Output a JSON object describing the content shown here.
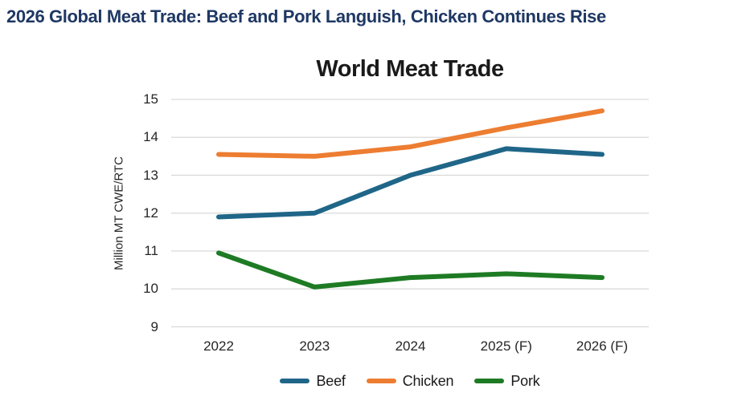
{
  "page": {
    "headline": "2026 Global Meat Trade: Beef and Pork Languish, Chicken Continues Rise",
    "headline_color": "#1f3864"
  },
  "chart_data": {
    "type": "line",
    "title": "World Meat Trade",
    "xlabel": "",
    "ylabel": "Million MT CWE/RTC",
    "categories": [
      "2022",
      "2023",
      "2024",
      "2025 (F)",
      "2026 (F)"
    ],
    "series": [
      {
        "name": "Beef",
        "color": "#1f6688",
        "values": [
          11.9,
          12.0,
          13.0,
          13.7,
          13.55
        ]
      },
      {
        "name": "Chicken",
        "color": "#ed7d31",
        "values": [
          13.55,
          13.5,
          13.75,
          14.25,
          14.7
        ]
      },
      {
        "name": "Pork",
        "color": "#1e7b24",
        "values": [
          10.95,
          10.05,
          10.3,
          10.4,
          10.3
        ]
      }
    ],
    "ylim": [
      9,
      15
    ],
    "yticks": [
      9,
      10,
      11,
      12,
      13,
      14,
      15
    ],
    "grid": true,
    "grid_color": "#d9d9d9",
    "legend_position": "bottom",
    "line_width": 6
  }
}
